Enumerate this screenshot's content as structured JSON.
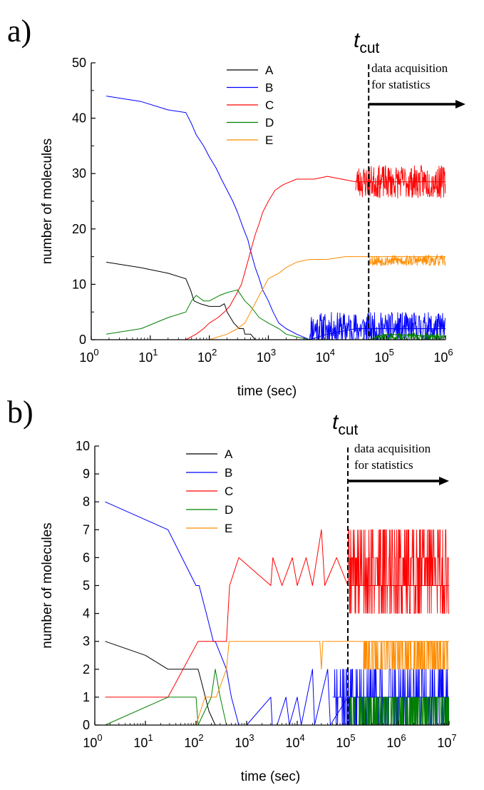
{
  "chart_data": [
    {
      "type": "line",
      "panel_label": "a)",
      "xlabel": "time (sec)",
      "ylabel": "number of molecules",
      "xscale": "log",
      "xlim": [
        1,
        1000000
      ],
      "ylim": [
        0,
        50
      ],
      "x_ticks": [
        {
          "base": "10",
          "exp": "0"
        },
        {
          "base": "10",
          "exp": "1"
        },
        {
          "base": "10",
          "exp": "2"
        },
        {
          "base": "10",
          "exp": "3"
        },
        {
          "base": "10",
          "exp": "4"
        },
        {
          "base": "10",
          "exp": "5"
        },
        {
          "base": "10",
          "exp": "6"
        }
      ],
      "y_ticks": [
        "0",
        "10",
        "20",
        "30",
        "40",
        "50"
      ],
      "y_tick_values": [
        0,
        10,
        20,
        30,
        40,
        50
      ],
      "y_minor_step": 5,
      "legend_position": "top-center",
      "series": [
        {
          "name": "A",
          "color": "#000000",
          "points": [
            [
              1.8,
              14
            ],
            [
              7,
              13
            ],
            [
              20,
              12
            ],
            [
              40,
              11
            ],
            [
              48,
              9
            ],
            [
              55,
              7
            ],
            [
              70,
              6.5
            ],
            [
              100,
              6
            ],
            [
              150,
              6
            ],
            [
              180,
              6.5
            ],
            [
              200,
              5
            ],
            [
              260,
              3
            ],
            [
              320,
              2
            ],
            [
              380,
              2
            ],
            [
              400,
              1
            ],
            [
              500,
              1
            ],
            [
              600,
              0
            ],
            [
              800,
              0
            ],
            [
              1000,
              0
            ],
            [
              1000000,
              0
            ]
          ],
          "noise": null
        },
        {
          "name": "B",
          "color": "#0000ff",
          "points": [
            [
              1.8,
              44
            ],
            [
              7,
              43
            ],
            [
              20,
              41.5
            ],
            [
              40,
              41
            ],
            [
              50,
              39
            ],
            [
              60,
              37
            ],
            [
              80,
              35
            ],
            [
              100,
              33
            ],
            [
              130,
              31
            ],
            [
              160,
              29
            ],
            [
              200,
              27
            ],
            [
              250,
              25
            ],
            [
              300,
              23
            ],
            [
              380,
              20
            ],
            [
              450,
              18
            ],
            [
              500,
              16
            ],
            [
              600,
              13
            ],
            [
              700,
              11
            ],
            [
              800,
              9
            ],
            [
              1000,
              7
            ],
            [
              1200,
              5
            ],
            [
              1500,
              3
            ],
            [
              2000,
              2
            ],
            [
              3000,
              1
            ],
            [
              5000,
              0
            ],
            [
              10000,
              1
            ],
            [
              30000,
              2
            ],
            [
              1000000,
              2
            ]
          ],
          "noise": {
            "from": 5000,
            "mid": 2,
            "amp": 3,
            "seed": 11
          }
        },
        {
          "name": "C",
          "color": "#ff0000",
          "points": [
            [
              1.8,
              0
            ],
            [
              40,
              0
            ],
            [
              60,
              1
            ],
            [
              80,
              2
            ],
            [
              100,
              3
            ],
            [
              140,
              4
            ],
            [
              180,
              5
            ],
            [
              220,
              6
            ],
            [
              280,
              8
            ],
            [
              350,
              10
            ],
            [
              420,
              13
            ],
            [
              500,
              16
            ],
            [
              600,
              19
            ],
            [
              700,
              21
            ],
            [
              800,
              23
            ],
            [
              1000,
              25
            ],
            [
              1300,
              27
            ],
            [
              1800,
              28
            ],
            [
              3000,
              29
            ],
            [
              6000,
              29
            ],
            [
              10000,
              29.5
            ],
            [
              30000,
              28.5
            ],
            [
              1000000,
              28.5
            ]
          ],
          "noise": {
            "from": 30000,
            "mid": 28.5,
            "amp": 3,
            "seed": 23
          }
        },
        {
          "name": "D",
          "color": "#008000",
          "points": [
            [
              1.8,
              1
            ],
            [
              7,
              2
            ],
            [
              20,
              4
            ],
            [
              40,
              5
            ],
            [
              50,
              7
            ],
            [
              60,
              8
            ],
            [
              80,
              7
            ],
            [
              100,
              7
            ],
            [
              150,
              8
            ],
            [
              200,
              8.5
            ],
            [
              300,
              9
            ],
            [
              400,
              7
            ],
            [
              500,
              6
            ],
            [
              700,
              4
            ],
            [
              1000,
              3
            ],
            [
              1500,
              2
            ],
            [
              2000,
              1
            ],
            [
              3000,
              0.5
            ],
            [
              5000,
              0
            ],
            [
              50000,
              0
            ],
            [
              100000,
              1
            ],
            [
              1000000,
              0.5
            ]
          ],
          "noise": {
            "from": 60000,
            "mid": 0.5,
            "amp": 0.7,
            "seed": 37
          }
        },
        {
          "name": "E",
          "color": "#ff8c00",
          "points": [
            [
              1.8,
              0
            ],
            [
              40,
              0
            ],
            [
              100,
              0
            ],
            [
              200,
              1
            ],
            [
              300,
              2
            ],
            [
              400,
              3
            ],
            [
              500,
              5
            ],
            [
              700,
              8
            ],
            [
              1000,
              11
            ],
            [
              1500,
              12
            ],
            [
              2000,
              13
            ],
            [
              3000,
              14
            ],
            [
              5000,
              14.5
            ],
            [
              10000,
              14.5
            ],
            [
              20000,
              15
            ],
            [
              100000,
              15
            ],
            [
              1000000,
              15
            ]
          ],
          "noise": {
            "from": 50000,
            "mid": 14.3,
            "amp": 1.0,
            "seed": 53
          }
        }
      ],
      "t_cut": {
        "label": "t",
        "subscript": "cut",
        "x": 50000
      },
      "annotation": {
        "line1": "data acquisition",
        "line2": "for statistics"
      }
    },
    {
      "type": "line",
      "panel_label": "b)",
      "xlabel": "time (sec)",
      "ylabel": "number of molecules",
      "xscale": "log",
      "xlim": [
        1,
        10000000
      ],
      "ylim": [
        0,
        10
      ],
      "x_ticks": [
        {
          "base": "10",
          "exp": "0"
        },
        {
          "base": "10",
          "exp": "1"
        },
        {
          "base": "10",
          "exp": "2"
        },
        {
          "base": "10",
          "exp": "3"
        },
        {
          "base": "10",
          "exp": "4"
        },
        {
          "base": "10",
          "exp": "5"
        },
        {
          "base": "10",
          "exp": "6"
        },
        {
          "base": "10",
          "exp": "7"
        }
      ],
      "y_ticks": [
        "0",
        "1",
        "2",
        "3",
        "4",
        "5",
        "6",
        "7",
        "8",
        "9",
        "10"
      ],
      "y_tick_values": [
        0,
        1,
        2,
        3,
        4,
        5,
        6,
        7,
        8,
        9,
        10
      ],
      "y_minor_step": null,
      "legend_position": "top-center",
      "series": [
        {
          "name": "A",
          "color": "#000000",
          "points": [
            [
              1.6,
              3
            ],
            [
              10,
              2.5
            ],
            [
              28,
              2
            ],
            [
              100,
              2
            ],
            [
              110,
              2
            ],
            [
              130,
              1.5
            ],
            [
              180,
              0.5
            ],
            [
              240,
              0
            ],
            [
              10000000,
              0
            ]
          ],
          "noise": null
        },
        {
          "name": "B",
          "color": "#0000ff",
          "points": [
            [
              1.6,
              8
            ],
            [
              28,
              7
            ],
            [
              100,
              5
            ],
            [
              115,
              5
            ],
            [
              160,
              4
            ],
            [
              220,
              3
            ],
            [
              240,
              3
            ],
            [
              400,
              2
            ],
            [
              500,
              1
            ],
            [
              700,
              0
            ],
            [
              1000,
              0
            ],
            [
              3000,
              1
            ],
            [
              3200,
              0
            ],
            [
              4000,
              0
            ],
            [
              6000,
              1
            ],
            [
              7000,
              0
            ],
            [
              10000,
              1
            ],
            [
              12000,
              0
            ],
            [
              20000,
              2
            ],
            [
              22000,
              0
            ],
            [
              40000,
              2
            ],
            [
              45000,
              0
            ],
            [
              100000,
              1
            ],
            [
              10000000,
              1
            ]
          ],
          "noise": {
            "from": 50000,
            "mid": 1,
            "amp": 1,
            "seed": 71,
            "integer": true
          }
        },
        {
          "name": "C",
          "color": "#ff0000",
          "points": [
            [
              1.6,
              1
            ],
            [
              28,
              1
            ],
            [
              110,
              3
            ],
            [
              400,
              3
            ],
            [
              460,
              5
            ],
            [
              700,
              6
            ],
            [
              3000,
              5
            ],
            [
              3300,
              6
            ],
            [
              5000,
              5
            ],
            [
              8000,
              6
            ],
            [
              10000,
              5
            ],
            [
              15000,
              6
            ],
            [
              20000,
              5
            ],
            [
              30000,
              7
            ],
            [
              35000,
              5
            ],
            [
              60000,
              6
            ],
            [
              100000,
              5
            ],
            [
              10000000,
              5
            ]
          ],
          "noise": {
            "from": 100000,
            "mid": 5.5,
            "amp": 2,
            "seed": 89,
            "integer": true
          }
        },
        {
          "name": "D",
          "color": "#008000",
          "points": [
            [
              1.6,
              0
            ],
            [
              28,
              1
            ],
            [
              100,
              1
            ],
            [
              110,
              0
            ],
            [
              200,
              1
            ],
            [
              240,
              2
            ],
            [
              300,
              1
            ],
            [
              400,
              0
            ],
            [
              10000000,
              0
            ]
          ],
          "noise": {
            "from": 100000,
            "mid": 0.5,
            "amp": 0.5,
            "seed": 97,
            "integer": true
          }
        },
        {
          "name": "E",
          "color": "#ff8c00",
          "points": [
            [
              1.6,
              0
            ],
            [
              100,
              0
            ],
            [
              150,
              1
            ],
            [
              250,
              1
            ],
            [
              400,
              2
            ],
            [
              450,
              3
            ],
            [
              28000,
              3
            ],
            [
              30000,
              2
            ],
            [
              32000,
              3
            ],
            [
              100000,
              3
            ],
            [
              10000000,
              3
            ]
          ],
          "noise": {
            "from": 200000,
            "mid": 2.5,
            "amp": 0.5,
            "seed": 101,
            "integer": true
          }
        }
      ],
      "t_cut": {
        "label": "t",
        "subscript": "cut",
        "x": 100000
      },
      "annotation": {
        "line1": "data acquisition",
        "line2": "for statistics"
      }
    }
  ]
}
